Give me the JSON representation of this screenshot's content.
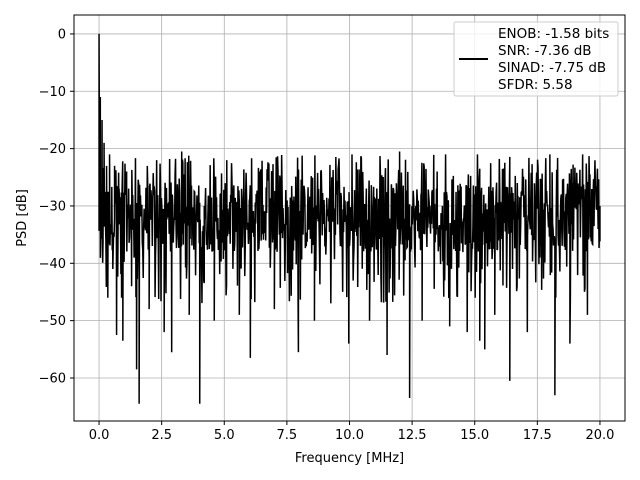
{
  "chart_data": {
    "type": "line",
    "title": "",
    "xlabel": "Frequency [MHz]",
    "ylabel": "PSD [dB]",
    "xlim": [
      -1.0,
      21.0
    ],
    "ylim": [
      -67.5,
      3.3
    ],
    "xticks": [
      0.0,
      2.5,
      5.0,
      7.5,
      10.0,
      12.5,
      15.0,
      17.5,
      20.0
    ],
    "xtick_labels": [
      "0.0",
      "2.5",
      "5.0",
      "7.5",
      "10.0",
      "12.5",
      "15.0",
      "17.5",
      "20.0"
    ],
    "yticks": [
      0,
      -10,
      -20,
      -30,
      -40,
      -50,
      -60
    ],
    "ytick_labels": [
      "0",
      "−10",
      "−20",
      "−30",
      "−40",
      "−50",
      "−60"
    ],
    "grid": true,
    "line_color": "#000000",
    "legend_placement": "top-right",
    "legend_lines": [
      "ENOB: -1.58 bits",
      "SNR: -7.36 dB",
      "SINAD: -7.75 dB",
      "SFDR: 5.58"
    ],
    "series": [
      {
        "x_start": 0.0,
        "x_end": 20.0,
        "noise_band": [
          -38,
          -26
        ],
        "envelope_top": -21,
        "envelope_bottom": -47,
        "points": [
          [
            0.0,
            0.0
          ],
          [
            0.02,
            -17
          ],
          [
            0.05,
            -11
          ],
          [
            0.08,
            -30
          ],
          [
            0.12,
            -15
          ],
          [
            0.16,
            -36
          ],
          [
            0.2,
            -19
          ],
          [
            0.25,
            -32
          ],
          [
            0.3,
            -23
          ],
          [
            0.35,
            -46
          ],
          [
            0.42,
            -21
          ],
          [
            0.5,
            -34
          ],
          [
            0.55,
            -41
          ],
          [
            0.62,
            -23
          ],
          [
            0.7,
            -52.5
          ],
          [
            0.8,
            -27
          ],
          [
            0.9,
            -46
          ],
          [
            0.95,
            -53.5
          ],
          [
            1.1,
            -24
          ],
          [
            1.3,
            -44
          ],
          [
            1.5,
            -58.5
          ],
          [
            1.55,
            -30
          ],
          [
            1.6,
            -64.5
          ],
          [
            1.7,
            -31
          ],
          [
            2.0,
            -48
          ],
          [
            2.3,
            -22
          ],
          [
            2.6,
            -52
          ],
          [
            2.9,
            -55.5
          ],
          [
            3.3,
            -20.5
          ],
          [
            3.6,
            -49
          ],
          [
            4.02,
            -64.5
          ],
          [
            4.2,
            -30
          ],
          [
            4.6,
            -50
          ],
          [
            5.1,
            -22
          ],
          [
            5.6,
            -49
          ],
          [
            6.04,
            -56.5
          ],
          [
            6.4,
            -24
          ],
          [
            7.0,
            -48
          ],
          [
            7.96,
            -55.5
          ],
          [
            8.6,
            -50
          ],
          [
            9.3,
            -25
          ],
          [
            9.97,
            -54
          ],
          [
            10.1,
            -21
          ],
          [
            10.8,
            -50
          ],
          [
            11.5,
            -56
          ],
          [
            12.0,
            -20.5
          ],
          [
            12.4,
            -63.5
          ],
          [
            12.9,
            -50
          ],
          [
            13.5,
            -24
          ],
          [
            14.0,
            -51
          ],
          [
            14.7,
            -52
          ],
          [
            15.2,
            -53.5
          ],
          [
            15.4,
            -55
          ],
          [
            15.8,
            -49
          ],
          [
            16.4,
            -60.5
          ],
          [
            16.7,
            -26
          ],
          [
            17.1,
            -52
          ],
          [
            18.0,
            -21
          ],
          [
            18.2,
            -63
          ],
          [
            18.8,
            -54
          ],
          [
            19.5,
            -49
          ],
          [
            19.9,
            -23.5
          ],
          [
            20.0,
            -30
          ]
        ]
      }
    ]
  }
}
